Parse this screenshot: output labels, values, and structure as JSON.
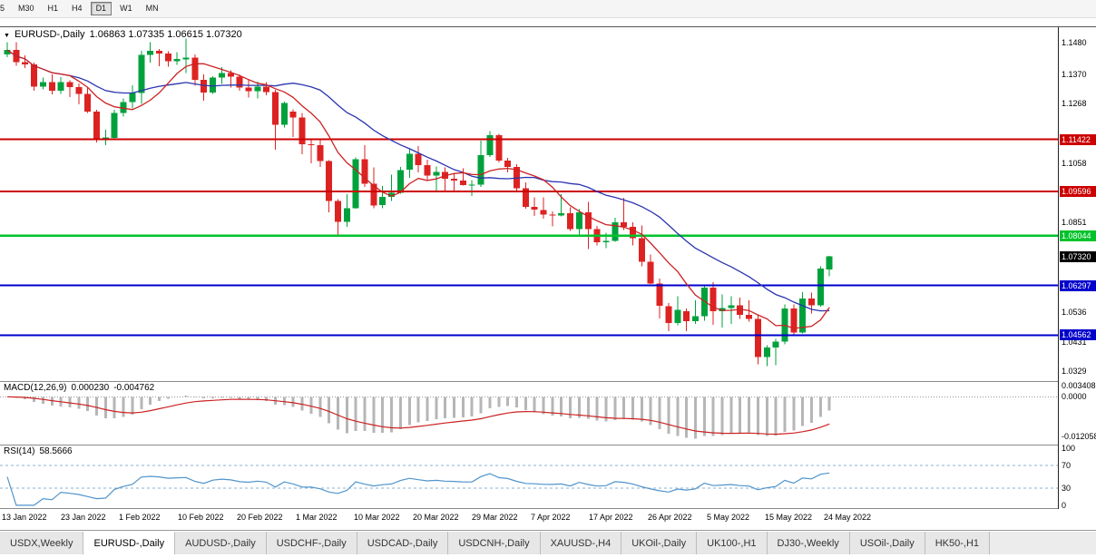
{
  "toolbar": {
    "timeframes": [
      {
        "label": "5",
        "active": false
      },
      {
        "label": "M30",
        "active": false
      },
      {
        "label": "H1",
        "active": false
      },
      {
        "label": "H4",
        "active": false
      },
      {
        "label": "D1",
        "active": true
      },
      {
        "label": "W1",
        "active": false
      },
      {
        "label": "MN",
        "active": false
      }
    ]
  },
  "chart": {
    "symbol_title": "EURUSD-,Daily",
    "ohlc_display": "1.06863 1.07335 1.06615 1.07320",
    "axis_ticks": [
      "1.1480",
      "1.1370",
      "1.1268",
      "1.1058",
      "1.0851",
      "1.0536",
      "1.0431",
      "1.0329"
    ],
    "levels": [
      {
        "price": 1.11422,
        "label": "1.11422",
        "color": "#cc0000",
        "width": 1.6
      },
      {
        "price": 1.09596,
        "label": "1.09596",
        "color": "#cc0000",
        "width": 1.6
      },
      {
        "price": 1.08044,
        "label": "1.08044",
        "color": "#00c22b",
        "width": 2.2
      },
      {
        "price": 1.06297,
        "label": "1.06297",
        "color": "#0000cc",
        "width": 2.0
      },
      {
        "price": 1.04562,
        "label": "1.04562",
        "color": "#0000cc",
        "width": 2.0
      }
    ],
    "current_price": {
      "value": 1.0732,
      "label": "1.07320",
      "color": "#000000"
    },
    "colors": {
      "up": "#00a13c",
      "down": "#dd2222",
      "ma_fast": "#cc2222",
      "ma_slow": "#2b35b0",
      "macd_hist": "#b6b6b6",
      "macd_signal": "#cc2222",
      "rsi_line": "#4f94cd",
      "rsi_level": "#8fb0d0",
      "zero_line": "#999999"
    }
  },
  "chart_data": {
    "type": "candlestick",
    "title": "EURUSD-,Daily",
    "symbol": "EURUSD",
    "timeframe": "Daily",
    "x_labels": [
      "13 Jan 2022",
      "23 Jan 2022",
      "1 Feb 2022",
      "10 Feb 2022",
      "20 Feb 2022",
      "1 Mar 2022",
      "10 Mar 2022",
      "20 Mar 2022",
      "29 Mar 2022",
      "7 Apr 2022",
      "17 Apr 2022",
      "26 Apr 2022",
      "5 May 2022",
      "15 May 2022",
      "24 May 2022"
    ],
    "price_scale": {
      "top": 1.1535,
      "bottom": 1.0295
    },
    "overlays": [
      {
        "name": "ma-fast",
        "type": "sma",
        "period": 8,
        "color": "#cc2222"
      },
      {
        "name": "ma-slow",
        "type": "sma",
        "period": 21,
        "color": "#2b35b0"
      }
    ],
    "candles": [
      [
        1.144,
        1.1482,
        1.143,
        1.1455
      ],
      [
        1.1455,
        1.1483,
        1.14,
        1.1412
      ],
      [
        1.1412,
        1.1436,
        1.1392,
        1.1405
      ],
      [
        1.1405,
        1.1411,
        1.1313,
        1.1326
      ],
      [
        1.1326,
        1.1358,
        1.1317,
        1.1343
      ],
      [
        1.1343,
        1.1369,
        1.13,
        1.1313
      ],
      [
        1.1313,
        1.136,
        1.1301,
        1.1343
      ],
      [
        1.1343,
        1.1349,
        1.129,
        1.1325
      ],
      [
        1.1325,
        1.1338,
        1.1264,
        1.1301
      ],
      [
        1.1301,
        1.1325,
        1.1234,
        1.124
      ],
      [
        1.124,
        1.1246,
        1.1131,
        1.1144
      ],
      [
        1.1144,
        1.1175,
        1.1121,
        1.1148
      ],
      [
        1.1148,
        1.1246,
        1.1141,
        1.1235
      ],
      [
        1.1235,
        1.1285,
        1.1222,
        1.1273
      ],
      [
        1.1273,
        1.1331,
        1.125,
        1.1305
      ],
      [
        1.1305,
        1.1452,
        1.1267,
        1.1438
      ],
      [
        1.1438,
        1.1483,
        1.1411,
        1.1453
      ],
      [
        1.1453,
        1.1459,
        1.1398,
        1.1443
      ],
      [
        1.1443,
        1.145,
        1.1396,
        1.1415
      ],
      [
        1.1415,
        1.1448,
        1.1403,
        1.1423
      ],
      [
        1.1423,
        1.1495,
        1.1375,
        1.1428
      ],
      [
        1.1428,
        1.144,
        1.133,
        1.135
      ],
      [
        1.135,
        1.1369,
        1.1278,
        1.1306
      ],
      [
        1.1306,
        1.1363,
        1.1301,
        1.1358
      ],
      [
        1.1358,
        1.1395,
        1.1336,
        1.1374
      ],
      [
        1.1374,
        1.1384,
        1.1323,
        1.1361
      ],
      [
        1.1361,
        1.137,
        1.1312,
        1.1324
      ],
      [
        1.1324,
        1.1351,
        1.1288,
        1.1311
      ],
      [
        1.1311,
        1.1344,
        1.1286,
        1.1327
      ],
      [
        1.1327,
        1.1343,
        1.1297,
        1.1307
      ],
      [
        1.1307,
        1.1316,
        1.1106,
        1.1193
      ],
      [
        1.1193,
        1.1274,
        1.1184,
        1.127
      ],
      [
        1.124,
        1.1248,
        1.115,
        1.1218
      ],
      [
        1.1218,
        1.1234,
        1.109,
        1.1125
      ],
      [
        1.1125,
        1.1146,
        1.1058,
        1.1122
      ],
      [
        1.1122,
        1.1139,
        1.1045,
        1.1066
      ],
      [
        1.1066,
        1.107,
        1.0886,
        1.0926
      ],
      [
        1.0926,
        1.0932,
        1.0806,
        1.0853
      ],
      [
        1.0853,
        1.095,
        1.0835,
        1.0901
      ],
      [
        1.0901,
        1.1078,
        1.0899,
        1.1073
      ],
      [
        1.1073,
        1.1121,
        1.0976,
        1.0986
      ],
      [
        1.0986,
        1.1043,
        1.09,
        1.0911
      ],
      [
        1.0911,
        1.0978,
        1.0901,
        1.094
      ],
      [
        1.094,
        1.1019,
        1.0926,
        1.0955
      ],
      [
        1.0955,
        1.1046,
        1.0951,
        1.1035
      ],
      [
        1.1035,
        1.1109,
        1.1007,
        1.1091
      ],
      [
        1.1091,
        1.1119,
        1.1027,
        1.1051
      ],
      [
        1.1051,
        1.1071,
        1.1001,
        1.1015
      ],
      [
        1.1015,
        1.1047,
        1.0961,
        1.1028
      ],
      [
        1.1028,
        1.1044,
        1.0963,
        1.1004
      ],
      [
        1.1004,
        1.1021,
        1.0961,
        1.0997
      ],
      [
        1.0997,
        1.104,
        1.098,
        1.0982
      ],
      [
        1.0982,
        1.0999,
        1.0944,
        1.0983
      ],
      [
        1.0983,
        1.1137,
        1.0975,
        1.1086
      ],
      [
        1.1086,
        1.1171,
        1.108,
        1.1157
      ],
      [
        1.1157,
        1.1162,
        1.1061,
        1.1067
      ],
      [
        1.1067,
        1.1077,
        1.1027,
        1.1045
      ],
      [
        1.1045,
        1.1055,
        1.0961,
        1.097
      ],
      [
        1.097,
        1.0991,
        1.0899,
        1.0905
      ],
      [
        1.0905,
        1.0939,
        1.0874,
        1.0895
      ],
      [
        1.0895,
        1.0939,
        1.0864,
        1.0878
      ],
      [
        1.0878,
        1.089,
        1.0837,
        1.0876
      ],
      [
        1.0876,
        1.095,
        1.0872,
        1.0883
      ],
      [
        1.0883,
        1.0904,
        1.0821,
        1.0827
      ],
      [
        1.0827,
        1.0897,
        1.0809,
        1.0886
      ],
      [
        1.0886,
        1.0923,
        1.0758,
        1.0827
      ],
      [
        1.0827,
        1.0839,
        1.077,
        1.0781
      ],
      [
        1.0781,
        1.0815,
        1.0761,
        1.0786
      ],
      [
        1.0786,
        1.0867,
        1.0783,
        1.0851
      ],
      [
        1.0851,
        1.0937,
        1.0824,
        1.0836
      ],
      [
        1.0836,
        1.0852,
        1.077,
        1.0795
      ],
      [
        1.0795,
        1.084,
        1.0697,
        1.0713
      ],
      [
        1.0713,
        1.0738,
        1.0635,
        1.0637
      ],
      [
        1.0637,
        1.0655,
        1.0514,
        1.0558
      ],
      [
        1.0558,
        1.0568,
        1.047,
        1.0498
      ],
      [
        1.0498,
        1.0593,
        1.049,
        1.0545
      ],
      [
        1.054,
        1.0549,
        1.047,
        1.0505
      ],
      [
        1.0505,
        1.0578,
        1.0495,
        1.0522
      ],
      [
        1.0522,
        1.0632,
        1.0507,
        1.0622
      ],
      [
        1.0622,
        1.0642,
        1.0492,
        1.054
      ],
      [
        1.054,
        1.0599,
        1.0483,
        1.0551
      ],
      [
        1.0551,
        1.0593,
        1.0495,
        1.056
      ],
      [
        1.056,
        1.0588,
        1.0513,
        1.0527
      ],
      [
        1.0527,
        1.0578,
        1.0503,
        1.0513
      ],
      [
        1.0513,
        1.0525,
        1.0354,
        1.0379
      ],
      [
        1.0379,
        1.042,
        1.0348,
        1.0412
      ],
      [
        1.0412,
        1.0443,
        1.035,
        1.0433
      ],
      [
        1.0433,
        1.0563,
        1.0424,
        1.0549
      ],
      [
        1.0549,
        1.0564,
        1.0459,
        1.0465
      ],
      [
        1.0465,
        1.0607,
        1.0462,
        1.0585
      ],
      [
        1.0585,
        1.0605,
        1.0532,
        1.0561
      ],
      [
        1.0561,
        1.0697,
        1.0556,
        1.069
      ],
      [
        1.06863,
        1.07335,
        1.06615,
        1.0732
      ]
    ]
  },
  "macd": {
    "name": "MACD(12,26,9)",
    "value_main": "0.000230",
    "value_signal": "-0.004762",
    "axis": [
      "0.003408",
      "0.0000",
      "-0.012058"
    ],
    "scale": {
      "max": 0.0045,
      "min": -0.0145
    },
    "params": {
      "fast": 12,
      "slow": 26,
      "signal": 9
    }
  },
  "rsi": {
    "name": "RSI(14)",
    "value": "58.5666",
    "axis": [
      "100",
      "70",
      "30",
      "0"
    ],
    "levels": [
      70,
      30
    ],
    "period": 14,
    "scale": {
      "max": 105,
      "min": -5
    }
  },
  "tabs": {
    "items": [
      {
        "label": "USDX,Weekly",
        "active": false
      },
      {
        "label": "EURUSD-,Daily",
        "active": true
      },
      {
        "label": "AUDUSD-,Daily",
        "active": false
      },
      {
        "label": "USDCHF-,Daily",
        "active": false
      },
      {
        "label": "USDCAD-,Daily",
        "active": false
      },
      {
        "label": "USDCNH-,Daily",
        "active": false
      },
      {
        "label": "XAUUSD-,H4",
        "active": false
      },
      {
        "label": "UKOil-,Daily",
        "active": false
      },
      {
        "label": "UK100-,H1",
        "active": false
      },
      {
        "label": "DJ30-,Weekly",
        "active": false
      },
      {
        "label": "USOil-,Daily",
        "active": false
      },
      {
        "label": "HK50-,H1",
        "active": false
      }
    ]
  }
}
